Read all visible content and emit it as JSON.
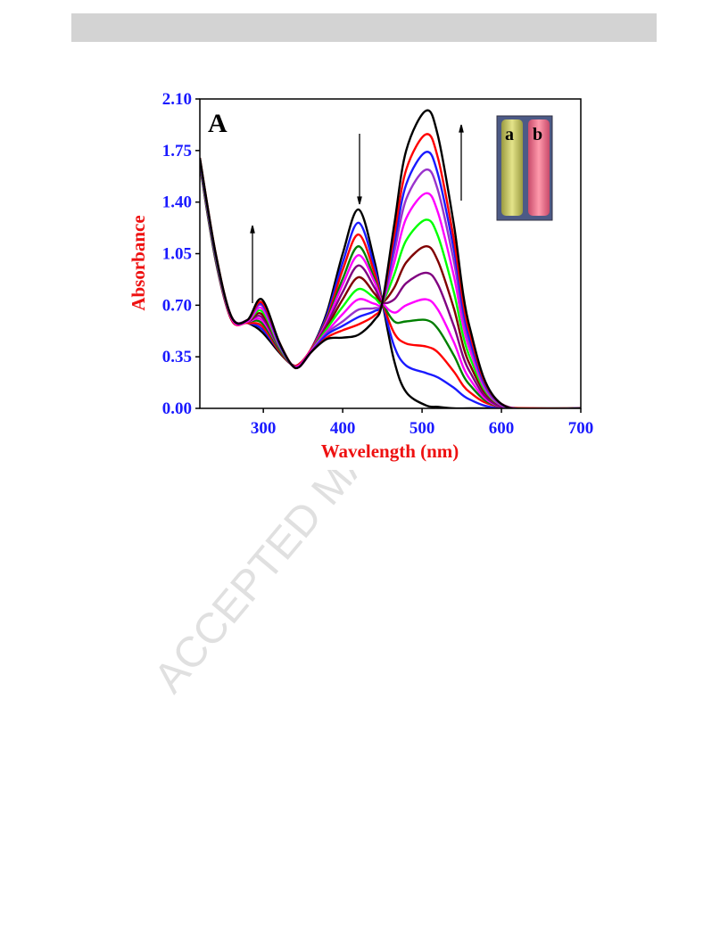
{
  "watermark": "ACCEPTED MANUSCRIPT",
  "chart_data": {
    "type": "line",
    "x_label": "Wavelength (nm)",
    "y_label": "Absorbance",
    "panel_label": "A",
    "inset_labels": [
      "a",
      "b"
    ],
    "xlim": [
      220,
      700
    ],
    "xticks": [
      300,
      400,
      500,
      600,
      700
    ],
    "ylim": [
      0,
      2.1
    ],
    "yticks": [
      {
        "value": 0,
        "label": "0.00"
      },
      {
        "value": 0.35,
        "label": "0.35"
      },
      {
        "value": 0.7,
        "label": "0.70"
      },
      {
        "value": 1.05,
        "label": "1.05"
      },
      {
        "value": 1.4,
        "label": "1.40"
      },
      {
        "value": 1.75,
        "label": "1.75"
      },
      {
        "value": 2.1,
        "label": "2.10"
      }
    ],
    "x": [
      220,
      240,
      260,
      280,
      298,
      320,
      335,
      345,
      360,
      380,
      400,
      420,
      440,
      450,
      465,
      480,
      505,
      520,
      540,
      560,
      600,
      700
    ],
    "series": [
      {
        "color": "#000000",
        "values": [
          1.65,
          1.0,
          0.6,
          0.58,
          0.52,
          0.38,
          0.3,
          0.3,
          0.4,
          0.65,
          1.05,
          1.35,
          1.0,
          0.72,
          0.32,
          0.11,
          0.02,
          0.01,
          0,
          0,
          0,
          0
        ]
      },
      {
        "color": "#1a1aff",
        "values": [
          1.66,
          1.01,
          0.6,
          0.58,
          0.54,
          0.39,
          0.3,
          0.3,
          0.4,
          0.63,
          0.99,
          1.26,
          0.96,
          0.72,
          0.42,
          0.29,
          0.24,
          0.21,
          0.14,
          0.06,
          0.0,
          0
        ]
      },
      {
        "color": "#ff0000",
        "values": [
          1.66,
          1.01,
          0.6,
          0.58,
          0.56,
          0.39,
          0.3,
          0.3,
          0.4,
          0.61,
          0.94,
          1.18,
          0.92,
          0.72,
          0.51,
          0.44,
          0.42,
          0.38,
          0.25,
          0.11,
          0.01,
          0
        ]
      },
      {
        "color": "#008000",
        "values": [
          1.66,
          1.01,
          0.61,
          0.59,
          0.58,
          0.4,
          0.3,
          0.29,
          0.39,
          0.6,
          0.88,
          1.1,
          0.88,
          0.72,
          0.59,
          0.59,
          0.6,
          0.54,
          0.36,
          0.16,
          0.01,
          0
        ]
      },
      {
        "color": "#ff00ff",
        "values": [
          1.67,
          1.02,
          0.61,
          0.59,
          0.6,
          0.41,
          0.3,
          0.29,
          0.39,
          0.59,
          0.84,
          1.04,
          0.86,
          0.72,
          0.65,
          0.7,
          0.74,
          0.67,
          0.45,
          0.2,
          0.01,
          0
        ]
      },
      {
        "color": "#800080",
        "values": [
          1.67,
          1.02,
          0.61,
          0.59,
          0.62,
          0.41,
          0.3,
          0.29,
          0.39,
          0.57,
          0.79,
          0.97,
          0.82,
          0.72,
          0.74,
          0.85,
          0.92,
          0.84,
          0.56,
          0.25,
          0.01,
          0
        ]
      },
      {
        "color": "#800000",
        "values": [
          1.68,
          1.03,
          0.61,
          0.59,
          0.64,
          0.42,
          0.3,
          0.29,
          0.39,
          0.55,
          0.74,
          0.89,
          0.78,
          0.72,
          0.82,
          0.99,
          1.1,
          1.0,
          0.68,
          0.3,
          0.02,
          0
        ]
      },
      {
        "color": "#00ff00",
        "values": [
          1.68,
          1.03,
          0.61,
          0.59,
          0.66,
          0.42,
          0.3,
          0.29,
          0.39,
          0.54,
          0.69,
          0.81,
          0.75,
          0.72,
          0.91,
          1.14,
          1.28,
          1.17,
          0.79,
          0.35,
          0.02,
          0
        ]
      },
      {
        "color": "#ff00ff",
        "values": [
          1.69,
          1.04,
          0.61,
          0.59,
          0.68,
          0.43,
          0.3,
          0.29,
          0.39,
          0.52,
          0.64,
          0.74,
          0.71,
          0.72,
          0.99,
          1.29,
          1.46,
          1.33,
          0.9,
          0.4,
          0.02,
          0
        ]
      },
      {
        "color": "#9933cc",
        "values": [
          1.69,
          1.04,
          0.62,
          0.6,
          0.7,
          0.44,
          0.3,
          0.28,
          0.38,
          0.51,
          0.59,
          0.67,
          0.68,
          0.72,
          1.06,
          1.42,
          1.62,
          1.48,
          1.0,
          0.44,
          0.02,
          0
        ]
      },
      {
        "color": "#1a1aff",
        "values": [
          1.69,
          1.04,
          0.62,
          0.6,
          0.71,
          0.44,
          0.3,
          0.28,
          0.38,
          0.5,
          0.56,
          0.62,
          0.66,
          0.72,
          1.12,
          1.52,
          1.74,
          1.59,
          1.08,
          0.47,
          0.03,
          0
        ]
      },
      {
        "color": "#ff0000",
        "values": [
          1.7,
          1.05,
          0.62,
          0.6,
          0.72,
          0.45,
          0.3,
          0.28,
          0.38,
          0.48,
          0.53,
          0.57,
          0.63,
          0.72,
          1.18,
          1.62,
          1.86,
          1.7,
          1.15,
          0.51,
          0.03,
          0
        ]
      },
      {
        "color": "#000000",
        "values": [
          1.7,
          1.05,
          0.62,
          0.6,
          0.74,
          0.45,
          0.3,
          0.28,
          0.38,
          0.47,
          0.48,
          0.5,
          0.6,
          0.72,
          1.25,
          1.75,
          2.02,
          1.85,
          1.25,
          0.55,
          0.03,
          0
        ]
      }
    ]
  }
}
